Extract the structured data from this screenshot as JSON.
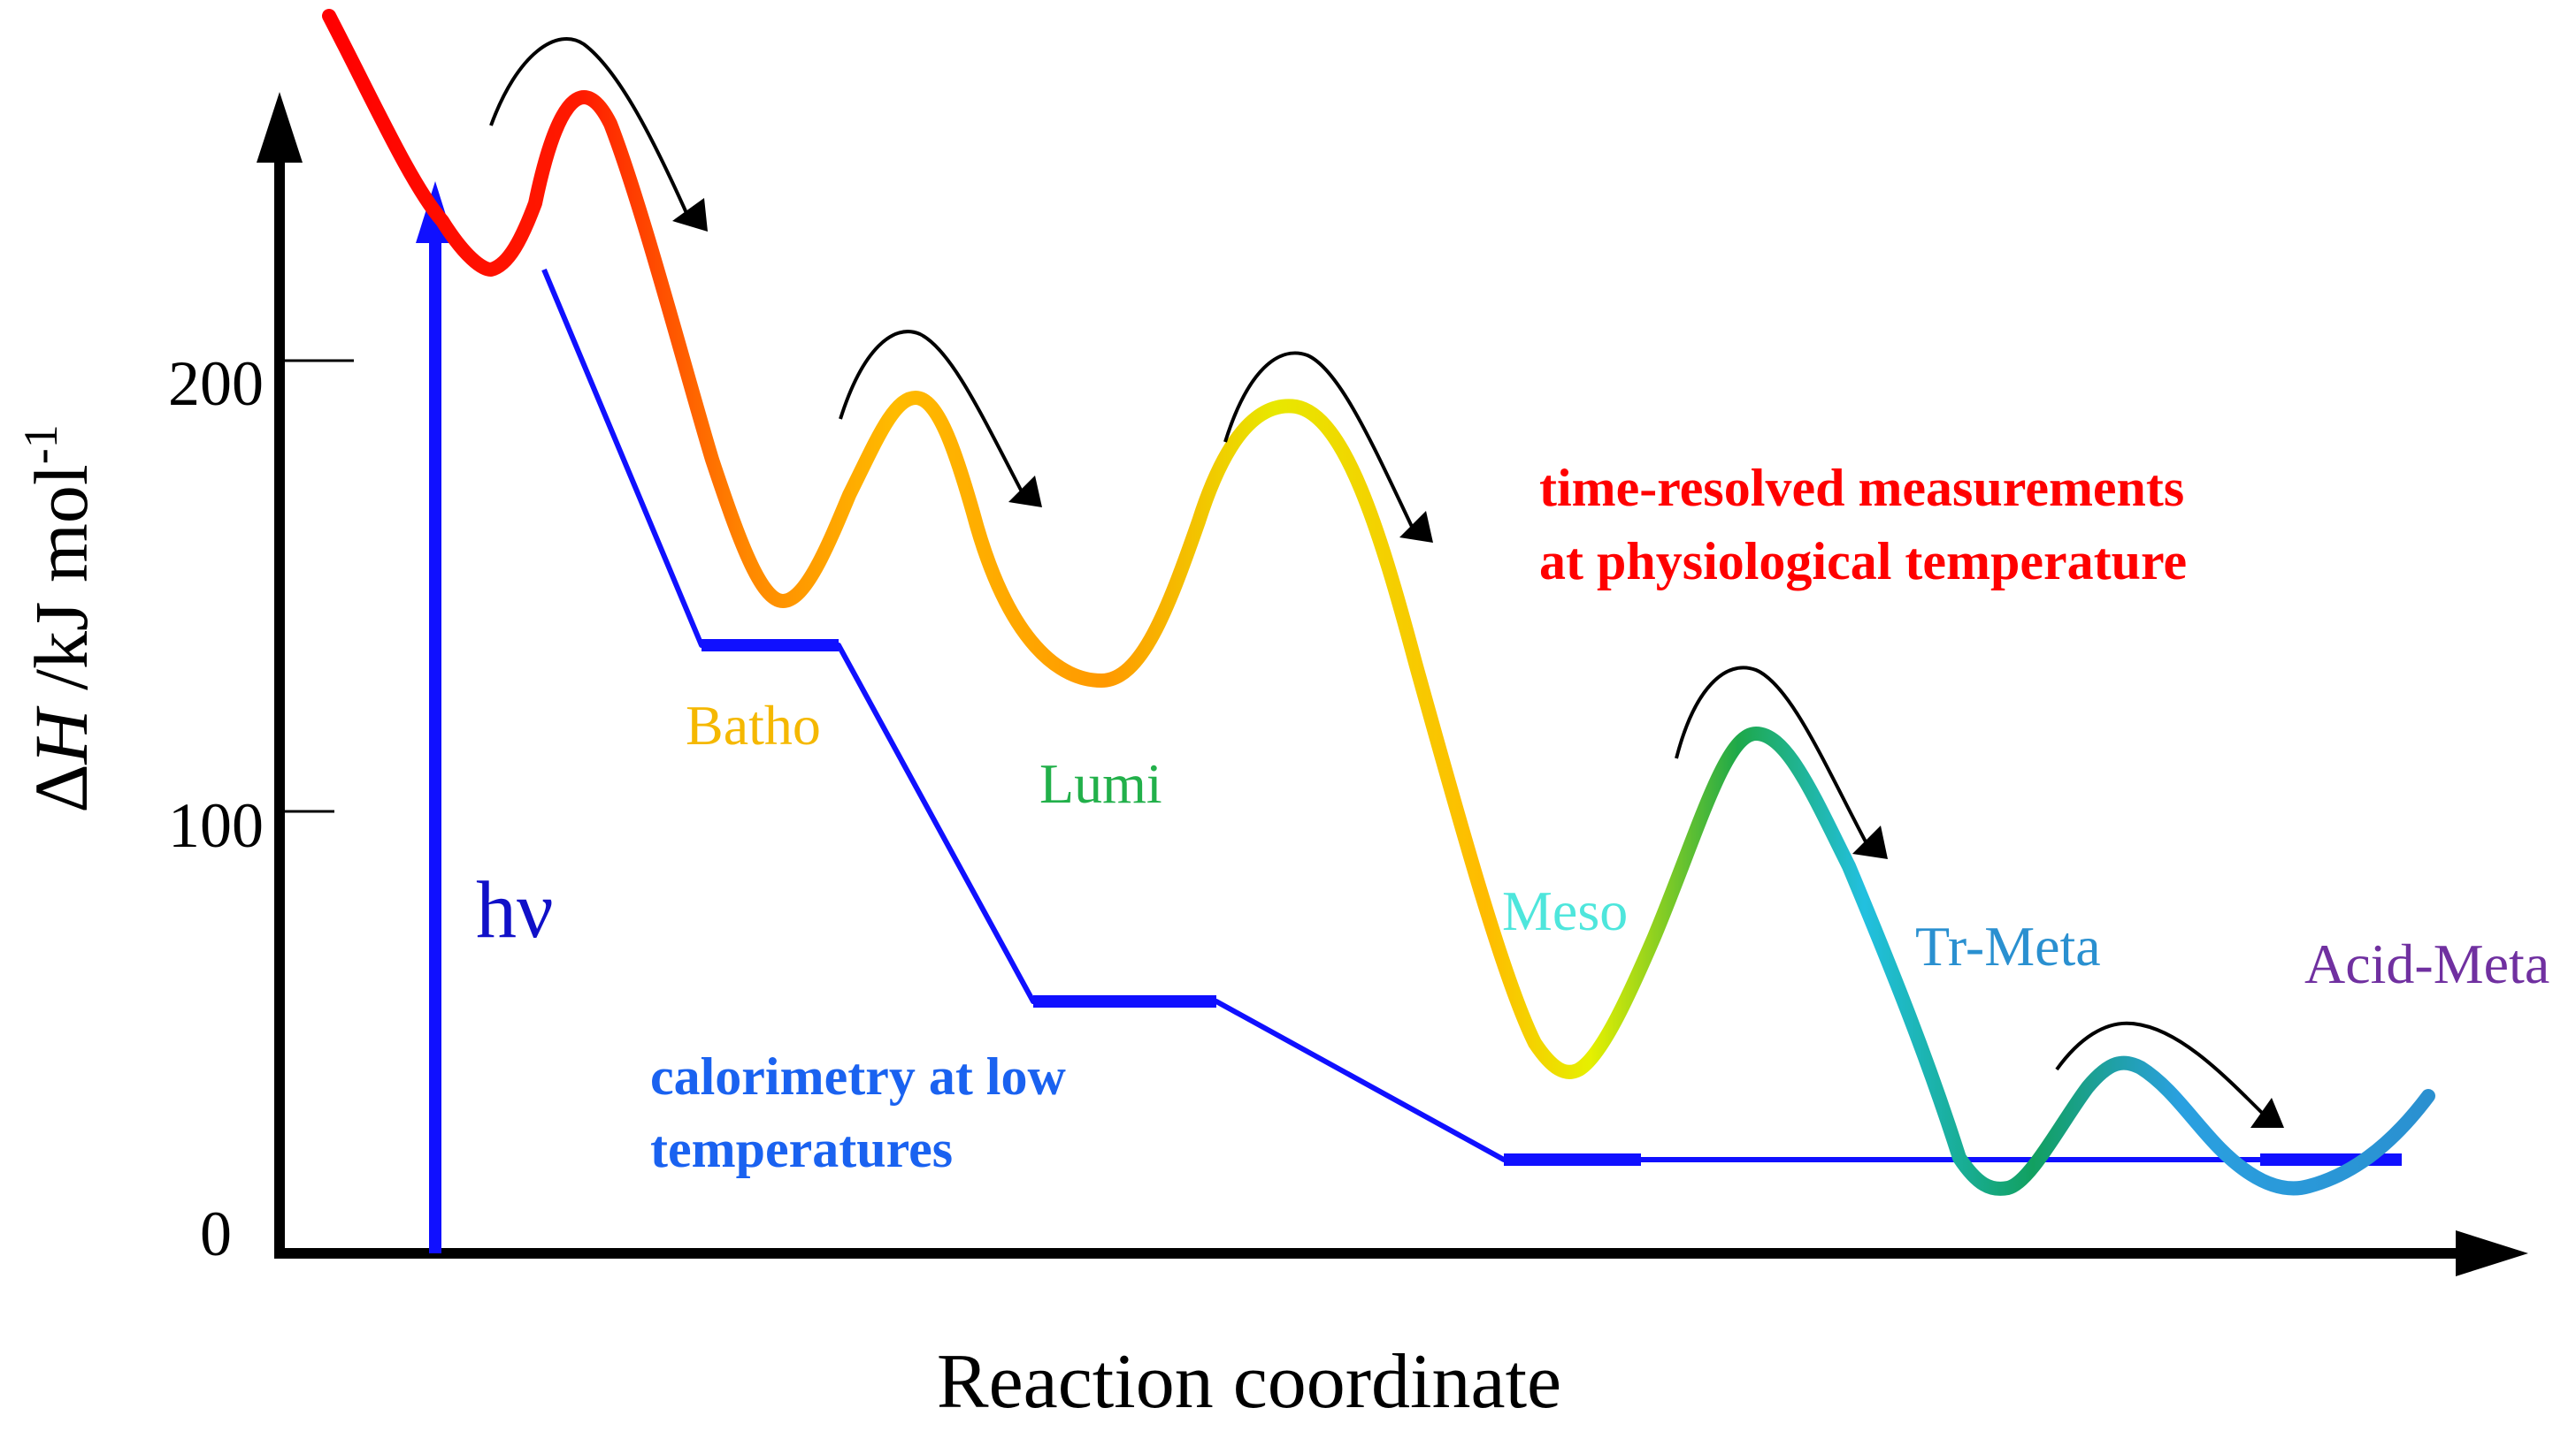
{
  "figure": {
    "y_axis_label": {
      "prefix": "Δ",
      "symbol": "H",
      "unit": " /kJ mol",
      "exponent": "-1"
    },
    "x_axis_label": "Reaction coordinate",
    "y_ticks": [
      {
        "value": 0,
        "label": "0"
      },
      {
        "value": 100,
        "label": "100"
      },
      {
        "value": 200,
        "label": "200"
      }
    ],
    "excitation_label": "hν",
    "states": [
      {
        "id": "batho",
        "label": "Batho",
        "color": "#f5b800"
      },
      {
        "id": "lumi",
        "label": "Lumi",
        "color": "#22b04a"
      },
      {
        "id": "meso",
        "label": "Meso",
        "color": "#4ee6dc"
      },
      {
        "id": "trmeta",
        "label": "Tr-Meta",
        "color": "#2a90d0"
      },
      {
        "id": "acidmeta",
        "label": "Acid-Meta",
        "color": "#7030a0"
      }
    ],
    "annotations": {
      "time_resolved": {
        "line1": "time-resolved measurements",
        "line2": "at physiological temperature",
        "color": "#ff0000"
      },
      "calorimetry": {
        "line1": "calorimetry at low",
        "line2": "temperatures",
        "color": "#1a62f0"
      }
    },
    "colors": {
      "axis": "#000000",
      "excitation_arrow": "#1010ff",
      "calorimetry_line": "#1010ff",
      "hv_text": "#1010c8"
    }
  }
}
